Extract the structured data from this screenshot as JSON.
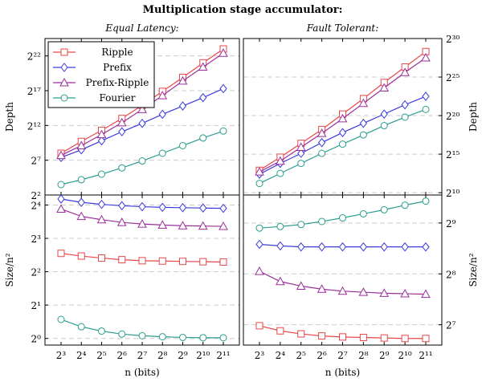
{
  "figure_title": "Multiplication stage accumulator:",
  "chart_data": [
    {
      "type": "line",
      "panel": "top-left",
      "title": "Equal Latency:",
      "ylabel": "Depth",
      "y_scale": "log2",
      "ylim_log2": [
        2,
        24.5
      ],
      "y_ticks": [
        {
          "exp": 2,
          "label": "2²"
        },
        {
          "exp": 7,
          "label": "2⁷"
        },
        {
          "exp": 12,
          "label": "2¹²"
        },
        {
          "exp": 17,
          "label": "2¹⁷"
        },
        {
          "exp": 22,
          "label": "2²²"
        }
      ],
      "x_ticks": [
        "2³",
        "2⁴",
        "2⁵",
        "2⁶",
        "2⁷",
        "2⁸",
        "2⁹",
        "2¹⁰",
        "2¹¹"
      ],
      "x_log2": [
        3,
        4,
        5,
        6,
        7,
        8,
        9,
        10,
        11
      ],
      "legend_position": "top-left",
      "series": [
        {
          "name": "Ripple",
          "color": "#e8474a",
          "marker": "square",
          "values_log2": [
            8.0,
            9.7,
            11.3,
            13.0,
            14.9,
            16.9,
            18.9,
            21.0,
            23.0
          ]
        },
        {
          "name": "Prefix",
          "color": "#3a3ae0",
          "marker": "diamond",
          "values_log2": [
            7.4,
            8.5,
            9.8,
            11.1,
            12.3,
            13.6,
            14.8,
            16.0,
            17.3
          ]
        },
        {
          "name": "Prefix-Ripple",
          "color": "#9b2f9b",
          "marker": "triangle",
          "values_log2": [
            7.7,
            9.1,
            10.7,
            12.4,
            14.3,
            16.3,
            18.4,
            20.4,
            22.4
          ]
        },
        {
          "name": "Fourier",
          "color": "#2a9d8f",
          "marker": "circle",
          "values_log2": [
            3.5,
            4.2,
            5.0,
            5.9,
            6.9,
            8.0,
            9.1,
            10.2,
            11.2
          ]
        }
      ]
    },
    {
      "type": "line",
      "panel": "top-right",
      "title": "Fault Tolerant:",
      "ylabel": "Depth",
      "y_scale": "log2",
      "ylim_log2": [
        9.7,
        30.0
      ],
      "y_ticks": [
        {
          "exp": 10,
          "label": "2¹⁰"
        },
        {
          "exp": 15,
          "label": "2¹⁵"
        },
        {
          "exp": 20,
          "label": "2²⁰"
        },
        {
          "exp": 25,
          "label": "2²⁵"
        },
        {
          "exp": 30,
          "label": "2³⁰"
        }
      ],
      "x_ticks": [
        "2³",
        "2⁴",
        "2⁵",
        "2⁶",
        "2⁷",
        "2⁸",
        "2⁹",
        "2¹⁰",
        "2¹¹"
      ],
      "x_log2": [
        3,
        4,
        5,
        6,
        7,
        8,
        9,
        10,
        11
      ],
      "series": [
        {
          "name": "Ripple",
          "color": "#e8474a",
          "marker": "square",
          "values_log2": [
            12.9,
            14.6,
            16.4,
            18.2,
            20.2,
            22.2,
            24.3,
            26.3,
            28.3
          ]
        },
        {
          "name": "Prefix",
          "color": "#3a3ae0",
          "marker": "diamond",
          "values_log2": [
            12.4,
            13.8,
            15.1,
            16.5,
            17.8,
            19.0,
            20.2,
            21.4,
            22.5
          ]
        },
        {
          "name": "Prefix-Ripple",
          "color": "#9b2f9b",
          "marker": "triangle",
          "values_log2": [
            12.7,
            14.1,
            15.9,
            17.7,
            19.6,
            21.6,
            23.6,
            25.6,
            27.5
          ]
        },
        {
          "name": "Fourier",
          "color": "#2a9d8f",
          "marker": "circle",
          "values_log2": [
            11.2,
            12.5,
            13.8,
            15.1,
            16.3,
            17.5,
            18.7,
            19.8,
            20.8
          ]
        }
      ]
    },
    {
      "type": "line",
      "panel": "bottom-left",
      "ylabel": "Size/n²",
      "xlabel": "n (bits)",
      "y_scale": "log2",
      "ylim_log2": [
        -0.2,
        4.3
      ],
      "y_ticks": [
        {
          "exp": 0,
          "label": "2⁰"
        },
        {
          "exp": 1,
          "label": "2¹"
        },
        {
          "exp": 2,
          "label": "2²"
        },
        {
          "exp": 3,
          "label": "2³"
        },
        {
          "exp": 4,
          "label": "2⁴"
        }
      ],
      "x_ticks": [
        "2³",
        "2⁴",
        "2⁵",
        "2⁶",
        "2⁷",
        "2⁸",
        "2⁹",
        "2¹⁰",
        "2¹¹"
      ],
      "x_log2": [
        3,
        4,
        5,
        6,
        7,
        8,
        9,
        10,
        11
      ],
      "series": [
        {
          "name": "Ripple",
          "color": "#e8474a",
          "marker": "square",
          "values_log2": [
            2.55,
            2.47,
            2.41,
            2.36,
            2.33,
            2.32,
            2.31,
            2.3,
            2.29
          ]
        },
        {
          "name": "Prefix",
          "color": "#3a3ae0",
          "marker": "diamond",
          "values_log2": [
            4.18,
            4.08,
            4.02,
            3.98,
            3.95,
            3.93,
            3.92,
            3.91,
            3.9
          ]
        },
        {
          "name": "Prefix-Ripple",
          "color": "#9b2f9b",
          "marker": "triangle",
          "values_log2": [
            3.88,
            3.66,
            3.56,
            3.48,
            3.43,
            3.4,
            3.38,
            3.37,
            3.36
          ]
        },
        {
          "name": "Fourier",
          "color": "#2a9d8f",
          "marker": "circle",
          "values_log2": [
            0.57,
            0.35,
            0.22,
            0.13,
            0.08,
            0.05,
            0.03,
            0.02,
            0.02
          ]
        }
      ]
    },
    {
      "type": "line",
      "panel": "bottom-right",
      "ylabel": "Size/n²",
      "xlabel": "n (bits)",
      "y_scale": "log2",
      "ylim_log2": [
        6.6,
        9.55
      ],
      "y_ticks": [
        {
          "exp": 7,
          "label": "2⁷"
        },
        {
          "exp": 8,
          "label": "2⁸"
        },
        {
          "exp": 9,
          "label": "2⁹"
        }
      ],
      "x_ticks": [
        "2³",
        "2⁴",
        "2⁵",
        "2⁶",
        "2⁷",
        "2⁸",
        "2⁹",
        "2¹⁰",
        "2¹¹"
      ],
      "x_log2": [
        3,
        4,
        5,
        6,
        7,
        8,
        9,
        10,
        11
      ],
      "series": [
        {
          "name": "Ripple",
          "color": "#e8474a",
          "marker": "square",
          "values_log2": [
            6.98,
            6.88,
            6.82,
            6.78,
            6.76,
            6.75,
            6.74,
            6.73,
            6.73
          ]
        },
        {
          "name": "Prefix",
          "color": "#3a3ae0",
          "marker": "diamond",
          "values_log2": [
            8.58,
            8.55,
            8.53,
            8.53,
            8.53,
            8.53,
            8.53,
            8.53,
            8.53
          ]
        },
        {
          "name": "Prefix-Ripple",
          "color": "#9b2f9b",
          "marker": "triangle",
          "values_log2": [
            8.05,
            7.85,
            7.76,
            7.7,
            7.66,
            7.64,
            7.62,
            7.61,
            7.6
          ]
        },
        {
          "name": "Fourier",
          "color": "#2a9d8f",
          "marker": "circle",
          "values_log2": [
            8.9,
            8.93,
            8.97,
            9.03,
            9.1,
            9.18,
            9.26,
            9.35,
            9.43
          ]
        }
      ]
    }
  ]
}
